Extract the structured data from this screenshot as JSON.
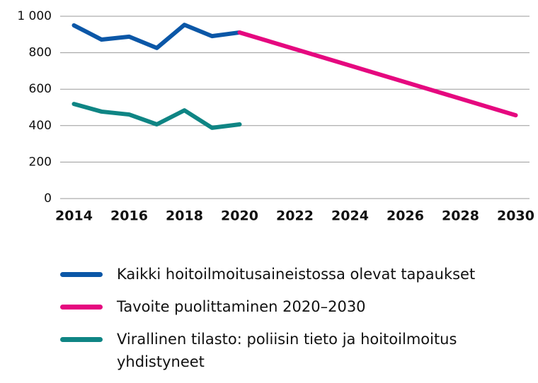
{
  "chart_data": {
    "type": "line",
    "series": [
      {
        "name": "Kaikki hoitoilmoitusaineistossa olevat tapaukset",
        "color": "#0b57a7",
        "x": [
          2014,
          2015,
          2016,
          2017,
          2018,
          2019,
          2020
        ],
        "values": [
          950,
          872,
          888,
          826,
          953,
          891,
          911
        ]
      },
      {
        "name": "Tavoite puolittaminen 2020–2030",
        "color": "#e5087f",
        "x": [
          2020,
          2030
        ],
        "values": [
          911,
          457
        ]
      },
      {
        "name": "Virallinen tilasto: poliisin tieto ja hoitoilmoitus yhdistyneet",
        "color": "#0f8584",
        "x": [
          2014,
          2015,
          2016,
          2017,
          2018,
          2019,
          2020
        ],
        "values": [
          519,
          477,
          461,
          407,
          484,
          388,
          407
        ]
      }
    ],
    "xlim": [
      2013.5,
      2030.5
    ],
    "xticks": [
      2014,
      2016,
      2018,
      2020,
      2022,
      2024,
      2026,
      2028,
      2030
    ],
    "ylim": [
      0,
      1000
    ],
    "yticks": [
      0,
      200,
      400,
      600,
      800,
      {
        "value": 1000,
        "label": "1 000"
      }
    ],
    "grid": true
  }
}
